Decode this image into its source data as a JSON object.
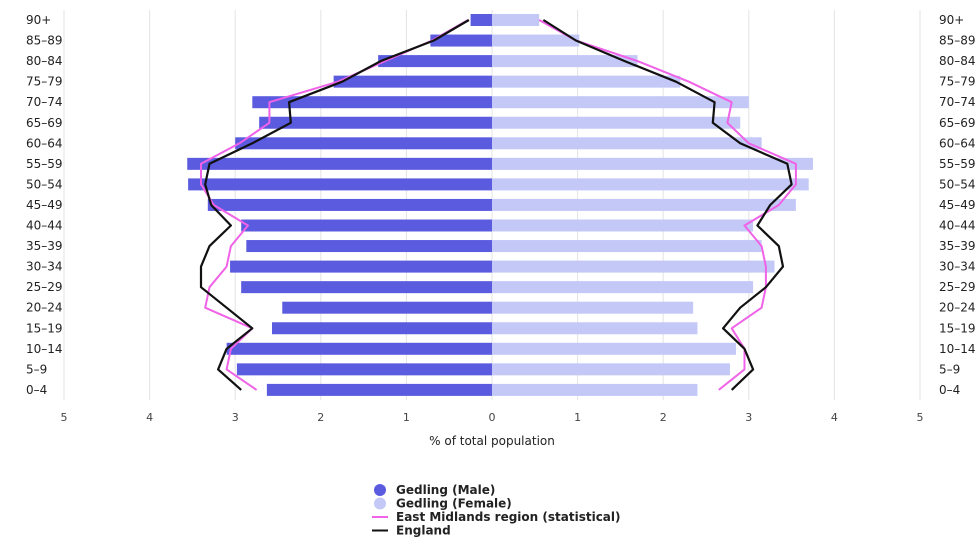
{
  "chart_data": {
    "type": "bar",
    "orientation": "horizontal",
    "categories": [
      "90+",
      "85-89",
      "80-84",
      "75-79",
      "70-74",
      "65-69",
      "60-64",
      "55-59",
      "50-54",
      "45-49",
      "40-44",
      "35-39",
      "30-34",
      "25-29",
      "20-24",
      "15-19",
      "10-14",
      "5-9",
      "0-4"
    ],
    "series": [
      {
        "name": "Gedling (Male)",
        "type": "bar",
        "values": [
          0.25,
          0.72,
          1.33,
          1.85,
          2.8,
          2.72,
          3.0,
          3.56,
          3.55,
          3.32,
          2.93,
          2.87,
          3.06,
          2.93,
          2.45,
          2.57,
          3.1,
          2.98,
          2.63
        ]
      },
      {
        "name": "Gedling (Female)",
        "type": "bar",
        "values": [
          0.55,
          1.02,
          1.7,
          2.2,
          3.0,
          2.9,
          3.15,
          3.75,
          3.7,
          3.55,
          3.05,
          3.15,
          3.3,
          3.05,
          2.35,
          2.4,
          2.85,
          2.78,
          2.4
        ]
      },
      {
        "name": "East Midlands region (statistical)",
        "type": "line",
        "male": [
          0.28,
          0.7,
          1.25,
          1.8,
          2.6,
          2.6,
          2.95,
          3.4,
          3.4,
          3.25,
          2.85,
          3.05,
          3.1,
          3.3,
          3.35,
          2.8,
          3.05,
          3.1,
          2.75
        ],
        "female": [
          0.55,
          0.98,
          1.7,
          2.3,
          2.8,
          2.75,
          3.0,
          3.55,
          3.55,
          3.35,
          2.95,
          3.15,
          3.2,
          3.2,
          3.15,
          2.8,
          2.95,
          2.95,
          2.65
        ]
      },
      {
        "name": "England",
        "type": "line",
        "male": [
          0.27,
          0.68,
          1.3,
          1.75,
          2.37,
          2.35,
          2.8,
          3.3,
          3.35,
          3.28,
          3.05,
          3.3,
          3.4,
          3.4,
          3.1,
          2.8,
          3.1,
          3.2,
          2.93
        ],
        "female": [
          0.6,
          0.98,
          1.55,
          2.15,
          2.6,
          2.58,
          2.9,
          3.45,
          3.5,
          3.25,
          3.1,
          3.35,
          3.4,
          3.2,
          2.9,
          2.7,
          2.95,
          3.05,
          2.8
        ]
      }
    ],
    "xticks": [
      "5",
      "4",
      "3",
      "2",
      "1",
      "0",
      "1",
      "2",
      "3",
      "4",
      "5"
    ],
    "xlim": [
      -5,
      5
    ],
    "xlabel": "% of total population",
    "ylabel": "",
    "title": "",
    "grid": true,
    "legend_position": "bottom-center",
    "colors": {
      "male": "#5b5be0",
      "female": "#c3c8f7",
      "region": "#f062e8",
      "england": "#111111",
      "grid": "#e3e3e3"
    }
  }
}
